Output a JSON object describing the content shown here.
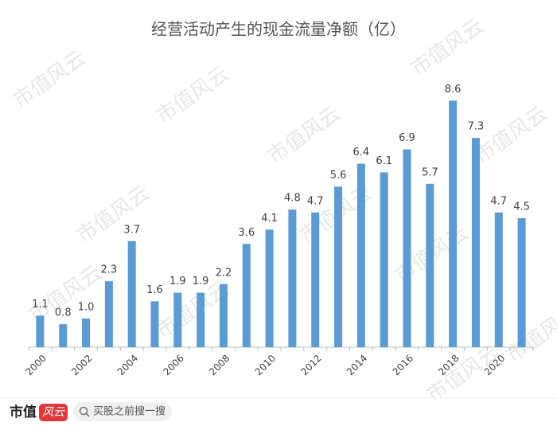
{
  "chart_data": {
    "type": "bar",
    "title": "经营活动产生的现金流量净额（亿）",
    "categories": [
      "2000",
      null,
      "2002",
      null,
      "2004",
      null,
      "2006",
      null,
      "2008",
      null,
      "2010",
      null,
      "2012",
      null,
      "2014",
      null,
      "2016",
      null,
      "2018",
      null,
      "2020",
      null
    ],
    "values": [
      1.1,
      0.8,
      1.0,
      2.3,
      3.7,
      1.6,
      1.9,
      1.9,
      2.2,
      3.6,
      4.1,
      4.8,
      4.7,
      5.6,
      6.4,
      6.1,
      6.9,
      5.7,
      8.6,
      7.3,
      4.7,
      4.5
    ],
    "value_labels": [
      "1.1",
      "0.8",
      "1.0",
      "2.3",
      "3.7",
      "1.6",
      "1.9",
      "1.9",
      "2.2",
      "3.6",
      "4.1",
      "4.8",
      "4.7",
      "5.6",
      "6.4",
      "6.1",
      "6.9",
      "5.7",
      "8.6",
      "7.3",
      "4.7",
      "4.5"
    ],
    "color": "#5b9bd5",
    "ylim": [
      0,
      10
    ]
  },
  "watermark": "市值风云",
  "footer": {
    "brand": "市值",
    "brand_mark": "风云",
    "search": "买股之前搜一搜"
  }
}
